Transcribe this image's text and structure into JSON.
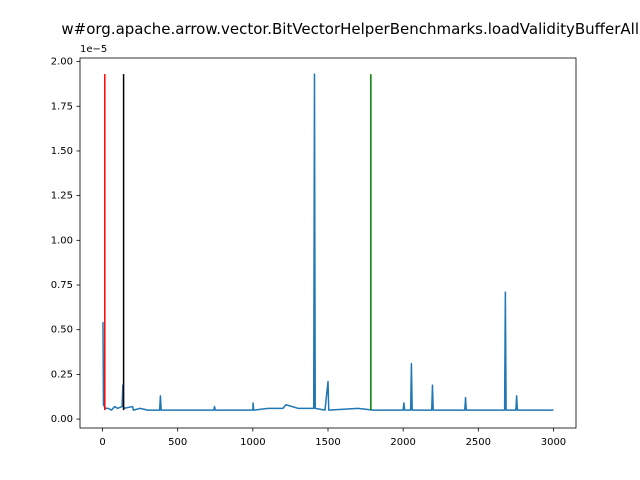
{
  "chart_data": {
    "type": "line",
    "title": "w#org.apache.arrow.vector.BitVectorHelperBenchmarks.loadValidityBufferAll",
    "y_offset_label": "1e−5",
    "x": [
      0,
      3,
      6,
      12,
      20,
      40,
      60,
      80,
      100,
      130,
      135,
      140,
      200,
      205,
      250,
      300,
      380,
      385,
      390,
      500,
      740,
      745,
      750,
      1000,
      1002,
      1005,
      1100,
      1200,
      1220,
      1300,
      1400,
      1405,
      1410,
      1415,
      1480,
      1500,
      1505,
      1700,
      1800,
      2000,
      2005,
      2010,
      2050,
      2055,
      2060,
      2190,
      2195,
      2200,
      2410,
      2415,
      2420,
      2675,
      2680,
      2685,
      2750,
      2755,
      2760,
      3000
    ],
    "series": [
      {
        "color": "#1f77b4",
        "values": [
          0.54,
          0.54,
          0.08,
          0.07,
          0.06,
          0.06,
          0.05,
          0.07,
          0.06,
          0.07,
          0.19,
          0.06,
          0.07,
          0.05,
          0.06,
          0.05,
          0.05,
          0.13,
          0.05,
          0.05,
          0.05,
          0.07,
          0.05,
          0.05,
          0.09,
          0.05,
          0.06,
          0.06,
          0.08,
          0.06,
          0.06,
          0.06,
          1.93,
          0.06,
          0.05,
          0.21,
          0.05,
          0.06,
          0.05,
          0.05,
          0.09,
          0.05,
          0.05,
          0.31,
          0.05,
          0.05,
          0.19,
          0.05,
          0.05,
          0.12,
          0.05,
          0.05,
          0.71,
          0.05,
          0.05,
          0.13,
          0.05,
          0.05
        ]
      }
    ],
    "vlines": [
      {
        "x": 15,
        "y0": 0.05,
        "y1": 1.93,
        "color": "#ff0000"
      },
      {
        "x": 140,
        "y0": 0.05,
        "y1": 1.93,
        "color": "#000000"
      },
      {
        "x": 1785,
        "y0": 0.05,
        "y1": 1.93,
        "color": "#008000"
      }
    ],
    "xlim": [
      -150,
      3150
    ],
    "ylim": [
      -0.05,
      2.02
    ],
    "xticks": [
      0,
      500,
      1000,
      1500,
      2000,
      2500,
      3000
    ],
    "yticks": [
      {
        "value": 0,
        "label": "0.00"
      },
      {
        "value": 0.25,
        "label": "0.25"
      },
      {
        "value": 0.5,
        "label": "0.50"
      },
      {
        "value": 0.75,
        "label": "0.75"
      },
      {
        "value": 1,
        "label": "1.00"
      },
      {
        "value": 1.25,
        "label": "1.25"
      },
      {
        "value": 1.5,
        "label": "1.50"
      },
      {
        "value": 1.75,
        "label": "1.75"
      },
      {
        "value": 2,
        "label": "2.00"
      }
    ]
  }
}
